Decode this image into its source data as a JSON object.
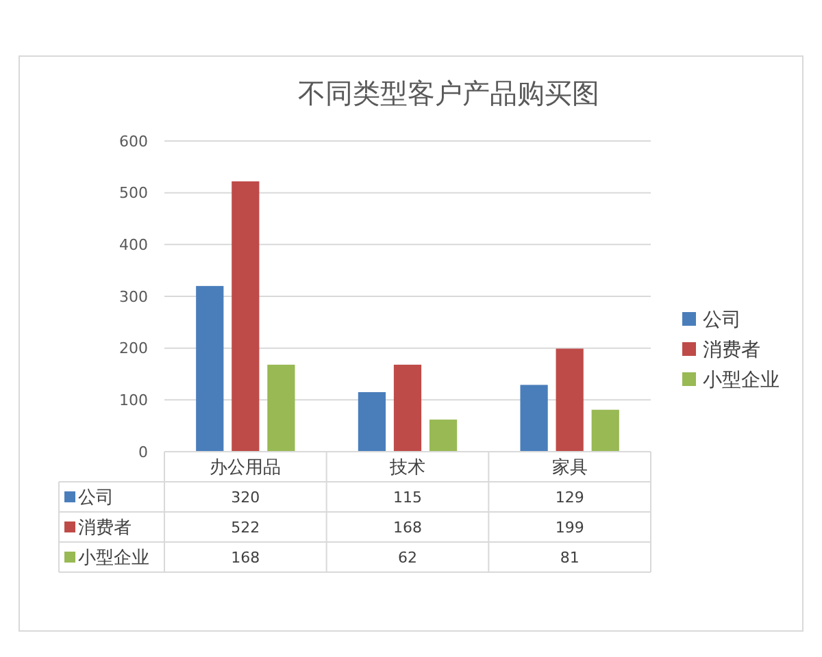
{
  "chart_data": {
    "type": "bar",
    "title": "不同类型客户产品购买图",
    "categories": [
      "办公用品",
      "技术",
      "家具"
    ],
    "series": [
      {
        "name": "公司",
        "color": "#4a7ebb",
        "values": [
          320,
          115,
          129
        ]
      },
      {
        "name": "消费者",
        "color": "#be4b48",
        "values": [
          522,
          168,
          199
        ]
      },
      {
        "name": "小型企业",
        "color": "#98b954",
        "values": [
          168,
          62,
          81
        ]
      }
    ],
    "ylim": [
      0,
      600
    ],
    "yticks": [
      0,
      100,
      200,
      300,
      400,
      500,
      600
    ],
    "grid": "y",
    "legend": "right",
    "data_labels": true
  }
}
